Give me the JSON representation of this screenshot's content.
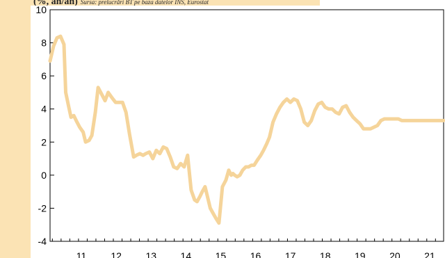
{
  "caption": {
    "unit": "(%, an/an)",
    "source": "Sursa: prelucrări BT pe baza datelor INS, Eurostat"
  },
  "chart_data": {
    "type": "line",
    "title": "",
    "xlabel": "",
    "ylabel": "",
    "ylim": [
      -4,
      10
    ],
    "y_ticks": [
      10,
      8,
      6,
      4,
      2,
      0,
      -2,
      -4
    ],
    "y_tick_labels": [
      "10",
      "8",
      "6",
      "4",
      "2",
      "0",
      "-2",
      "-4"
    ],
    "x_categories": [
      "11",
      "12",
      "13",
      "14",
      "15",
      "16",
      "17",
      "18",
      "19",
      "20",
      "21"
    ],
    "xlim": [
      2010.6,
      2021.9
    ],
    "grid": false,
    "line_color": "#f5d49a",
    "series": [
      {
        "x": [
          2010.6,
          2010.7,
          2010.8,
          2010.9,
          2011.0,
          2011.05,
          2011.12,
          2011.2,
          2011.28,
          2011.35,
          2011.45,
          2011.55,
          2011.62,
          2011.72,
          2011.8,
          2011.9,
          2011.98,
          2012.08,
          2012.18,
          2012.27,
          2012.37,
          2012.48,
          2012.58,
          2012.68,
          2012.78,
          2012.88,
          2013.0,
          2013.08,
          2013.18,
          2013.27,
          2013.35,
          2013.45,
          2013.55,
          2013.65,
          2013.75,
          2013.85,
          2013.95,
          2014.05,
          2014.15,
          2014.25,
          2014.35,
          2014.45,
          2014.55,
          2014.65,
          2014.75,
          2014.82,
          2014.9,
          2014.97,
          2015.05,
          2015.12,
          2015.2,
          2015.28,
          2015.36,
          2015.45,
          2015.55,
          2015.65,
          2015.73,
          2015.8,
          2015.85,
          2015.9,
          2015.97,
          2016.05,
          2016.13,
          2016.22,
          2016.3,
          2016.38,
          2016.46,
          2016.55,
          2016.65,
          2016.73,
          2016.82,
          2016.9,
          2017.0,
          2017.1,
          2017.2,
          2017.3,
          2017.4,
          2017.5,
          2017.6,
          2017.7,
          2017.8,
          2017.9,
          2018.0,
          2018.1,
          2018.2,
          2018.3,
          2018.4,
          2018.5,
          2018.6,
          2018.7,
          2018.8,
          2018.9,
          2019.0,
          2019.1,
          2019.2,
          2019.3,
          2019.4,
          2019.5,
          2019.6,
          2019.7,
          2019.8,
          2019.9,
          2020.0,
          2020.1,
          2020.2,
          2020.3,
          2020.4,
          2020.5,
          2020.6,
          2020.7,
          2020.8,
          2020.9,
          2021.0,
          2021.1,
          2021.2,
          2021.3,
          2021.4,
          2021.5,
          2021.6,
          2021.7,
          2021.8,
          2021.9
        ],
        "y": [
          6.9,
          7.8,
          8.3,
          8.4,
          7.9,
          5.0,
          4.3,
          3.5,
          3.6,
          3.3,
          2.9,
          2.6,
          2.0,
          2.1,
          2.4,
          3.8,
          5.3,
          4.9,
          4.5,
          5.0,
          4.7,
          4.4,
          4.4,
          4.4,
          3.8,
          2.5,
          1.1,
          1.2,
          1.3,
          1.2,
          1.3,
          1.4,
          1.0,
          1.5,
          1.3,
          1.7,
          1.6,
          1.1,
          0.5,
          0.4,
          0.7,
          0.5,
          1.2,
          -0.9,
          -1.5,
          -1.6,
          -1.3,
          -1.0,
          -0.7,
          -1.3,
          -2.0,
          -2.3,
          -2.6,
          -2.9,
          -0.7,
          -0.3,
          0.3,
          0.0,
          0.1,
          0.0,
          -0.1,
          0.0,
          0.3,
          0.5,
          0.5,
          0.6,
          0.6,
          0.9,
          1.2,
          1.5,
          1.9,
          2.3,
          3.2,
          3.7,
          4.1,
          4.4,
          4.6,
          4.4,
          4.6,
          4.5,
          4.0,
          3.2,
          3.0,
          3.3,
          3.9,
          4.3,
          4.4,
          4.1,
          4.0,
          4.0,
          3.8,
          3.7,
          4.1,
          4.2,
          3.8,
          3.5,
          3.3,
          3.1,
          2.8,
          2.8,
          2.8,
          2.9,
          3.0,
          3.3,
          3.4,
          3.4,
          3.4,
          3.4,
          3.4,
          3.3,
          3.3,
          3.3,
          3.3,
          3.3,
          3.3,
          3.3,
          3.3,
          3.3,
          3.3,
          3.3,
          3.3,
          3.3
        ]
      }
    ]
  }
}
